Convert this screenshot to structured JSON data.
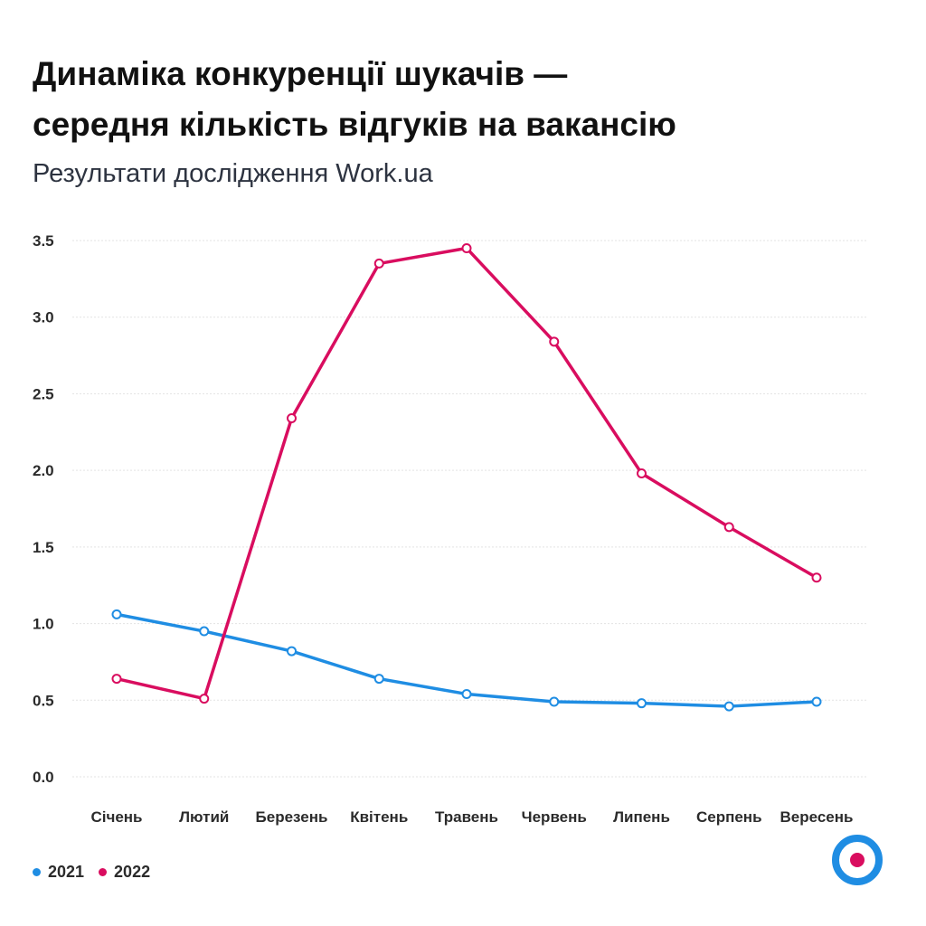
{
  "chart_data": {
    "type": "line",
    "title": "Динаміка конкуренції шукачів — середня кількість відгуків на вакансію",
    "title_lines": [
      "Динаміка конкуренції шукачів —",
      "середня кількість відгуків на вакансію"
    ],
    "subtitle": "Результати дослідження Work.ua",
    "xlabel": "",
    "ylabel": "",
    "categories": [
      "Січень",
      "Лютий",
      "Березень",
      "Квітень",
      "Травень",
      "Червень",
      "Липень",
      "Серпень",
      "Вересень"
    ],
    "series": [
      {
        "name": "2021",
        "color": "#1f8de3",
        "values": [
          1.06,
          0.95,
          0.82,
          0.64,
          0.54,
          0.49,
          0.48,
          0.46,
          0.49
        ]
      },
      {
        "name": "2022",
        "color": "#d90d5f",
        "values": [
          0.64,
          0.51,
          2.34,
          3.35,
          3.45,
          2.84,
          1.98,
          1.63,
          1.3
        ]
      }
    ],
    "ylim": [
      0,
      3.5
    ],
    "yticks": [
      "0.0",
      "0.5",
      "1.0",
      "1.5",
      "2.0",
      "2.5",
      "3.0",
      "3.5"
    ],
    "grid": true,
    "legend_position": "bottom-left"
  },
  "logo": {
    "name": "work-ua-logo-icon",
    "outer_color": "#1f8de3",
    "inner_color": "#d90d5f"
  }
}
